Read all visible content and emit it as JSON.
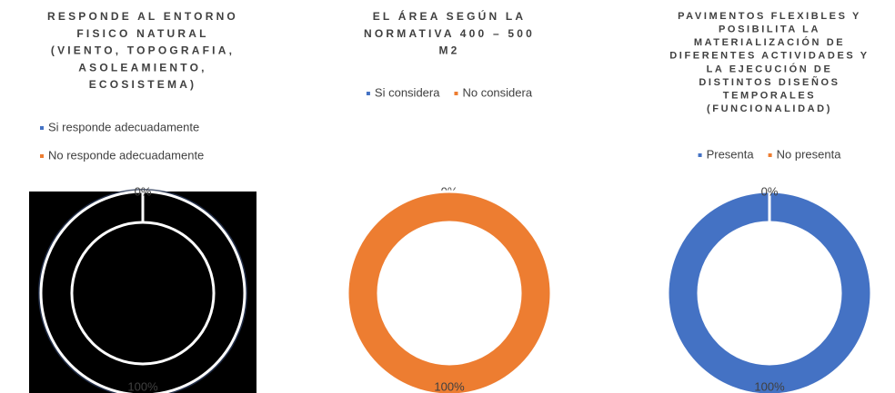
{
  "chart_data": [
    {
      "type": "donut",
      "title_lines": [
        "RESPONDE AL ENTORNO",
        "FISICO NATURAL",
        "(VIENTO, TOPOGRAFIA,",
        "ASOLEAMIENTO,",
        "ECOSISTEMA)"
      ],
      "labels": [
        "Si responde adecuadamente",
        "No responde adecuadamente"
      ],
      "values": [
        100,
        0
      ],
      "value_labels": [
        "100%",
        "0%"
      ],
      "colors": [
        "#4472c4",
        "#ed7d31"
      ],
      "slice_colors": [
        "#000000",
        "#000000"
      ],
      "background": "#000000",
      "legend": "vertical"
    },
    {
      "type": "donut",
      "title_lines": [
        "EL ÁREA SEGÚN LA",
        "NORMATIVA 400 – 500",
        "M2"
      ],
      "labels": [
        "Si considera",
        "No considera"
      ],
      "values": [
        0,
        100
      ],
      "value_labels": [
        "0%",
        "100%"
      ],
      "colors": [
        "#4472c4",
        "#ed7d31"
      ],
      "legend": "horizontal"
    },
    {
      "type": "donut",
      "title_lines": [
        "PAVIMENTOS FLEXIBLES Y",
        "POSIBILITA LA",
        "MATERIALIZACIÓN DE",
        "DIFERENTES ACTIVIDADES Y",
        "LA EJECUCIÓN DE",
        "DISTINTOS DISEÑOS",
        "TEMPORALES",
        "(FUNCIONALIDAD)"
      ],
      "labels": [
        "Presenta",
        "No presenta"
      ],
      "values": [
        100,
        0
      ],
      "value_labels": [
        "100%",
        "0%"
      ],
      "colors": [
        "#4472c4",
        "#ed7d31"
      ],
      "legend": "horizontal"
    }
  ]
}
